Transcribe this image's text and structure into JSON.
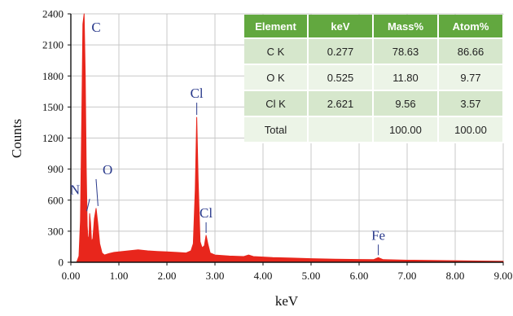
{
  "chart_data": {
    "type": "line",
    "xlabel": "keV",
    "ylabel": "Counts",
    "xlim": [
      0,
      9
    ],
    "ylim": [
      0,
      2400
    ],
    "grid": true,
    "x_ticks": [
      "0.00",
      "1.00",
      "2.00",
      "3.00",
      "4.00",
      "5.00",
      "6.00",
      "7.00",
      "8.00",
      "9.00"
    ],
    "y_ticks": [
      "0",
      "300",
      "600",
      "900",
      "1200",
      "1500",
      "1800",
      "2100",
      "2400"
    ],
    "series": [
      {
        "color": "#e8261c",
        "x": [
          0.12,
          0.17,
          0.2,
          0.23,
          0.25,
          0.277,
          0.3,
          0.32,
          0.34,
          0.36,
          0.38,
          0.392,
          0.41,
          0.43,
          0.46,
          0.49,
          0.525,
          0.56,
          0.6,
          0.65,
          0.7,
          0.8,
          0.9,
          1.0,
          1.2,
          1.4,
          1.6,
          1.8,
          2.0,
          2.2,
          2.4,
          2.5,
          2.55,
          2.59,
          2.621,
          2.65,
          2.69,
          2.73,
          2.78,
          2.815,
          2.85,
          2.9,
          3.0,
          3.3,
          3.6,
          3.7,
          3.8,
          4.2,
          4.6,
          5.0,
          5.5,
          6.0,
          6.3,
          6.4,
          6.5,
          7.0,
          7.5,
          8.0,
          8.5,
          9.0
        ],
        "y": [
          0,
          60,
          400,
          1500,
          2300,
          2450,
          1800,
          900,
          350,
          220,
          250,
          470,
          380,
          200,
          230,
          420,
          520,
          380,
          180,
          90,
          70,
          85,
          95,
          100,
          110,
          120,
          110,
          105,
          100,
          95,
          90,
          110,
          180,
          700,
          1400,
          800,
          200,
          140,
          160,
          260,
          180,
          90,
          70,
          60,
          55,
          70,
          55,
          45,
          40,
          35,
          30,
          27,
          25,
          45,
          25,
          20,
          18,
          15,
          12,
          10
        ]
      }
    ],
    "annotations": [
      {
        "text": "C",
        "x": 0.277
      },
      {
        "text": "N",
        "x": 0.392
      },
      {
        "text": "O",
        "x": 0.525
      },
      {
        "text": "Cl",
        "x": 2.621
      },
      {
        "text": "Cl",
        "x": 2.815
      },
      {
        "text": "Fe",
        "x": 6.4
      }
    ]
  },
  "table": {
    "headers": [
      "Element",
      "keV",
      "Mass%",
      "Atom%"
    ],
    "rows": [
      [
        "C K",
        "0.277",
        "78.63",
        "86.66"
      ],
      [
        "O K",
        "0.525",
        "11.80",
        "9.77"
      ],
      [
        "Cl K",
        "2.621",
        "9.56",
        "3.57"
      ],
      [
        "Total",
        "",
        "100.00",
        "100.00"
      ]
    ]
  }
}
